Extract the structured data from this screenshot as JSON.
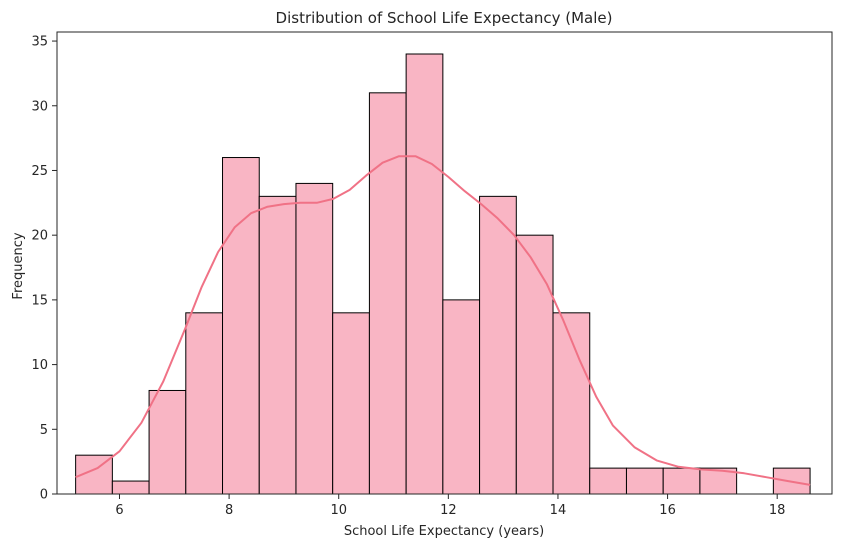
{
  "chart_data": {
    "type": "bar",
    "title": "Distribution of School Life Expectancy (Male)",
    "xlabel": "School Life Expectancy (years)",
    "ylabel": "Frequency",
    "xlim": [
      4.86,
      19.0
    ],
    "ylim": [
      0,
      35.7
    ],
    "xticks": [
      6,
      8,
      10,
      12,
      14,
      16,
      18
    ],
    "yticks": [
      0,
      5,
      10,
      15,
      20,
      25,
      30,
      35
    ],
    "grid": false,
    "bins": [
      {
        "x0": 5.2,
        "x1": 5.87,
        "count": 3
      },
      {
        "x0": 5.87,
        "x1": 6.54,
        "count": 1
      },
      {
        "x0": 6.54,
        "x1": 7.21,
        "count": 8
      },
      {
        "x0": 7.21,
        "x1": 7.88,
        "count": 14
      },
      {
        "x0": 7.88,
        "x1": 8.55,
        "count": 26
      },
      {
        "x0": 8.55,
        "x1": 9.22,
        "count": 23
      },
      {
        "x0": 9.22,
        "x1": 9.89,
        "count": 24
      },
      {
        "x0": 9.89,
        "x1": 10.56,
        "count": 14
      },
      {
        "x0": 10.56,
        "x1": 11.23,
        "count": 31
      },
      {
        "x0": 11.23,
        "x1": 11.9,
        "count": 34
      },
      {
        "x0": 11.9,
        "x1": 12.57,
        "count": 15
      },
      {
        "x0": 12.57,
        "x1": 13.24,
        "count": 23
      },
      {
        "x0": 13.24,
        "x1": 13.91,
        "count": 20
      },
      {
        "x0": 13.91,
        "x1": 14.58,
        "count": 14
      },
      {
        "x0": 14.58,
        "x1": 15.25,
        "count": 2
      },
      {
        "x0": 15.25,
        "x1": 15.92,
        "count": 2
      },
      {
        "x0": 15.92,
        "x1": 16.59,
        "count": 2
      },
      {
        "x0": 16.59,
        "x1": 17.26,
        "count": 2
      },
      {
        "x0": 17.26,
        "x1": 17.93,
        "count": 0
      },
      {
        "x0": 17.93,
        "x1": 18.6,
        "count": 2
      }
    ],
    "kde": {
      "x": [
        5.2,
        5.6,
        6.0,
        6.4,
        6.8,
        7.2,
        7.5,
        7.8,
        8.1,
        8.4,
        8.7,
        9.0,
        9.3,
        9.6,
        9.9,
        10.2,
        10.5,
        10.8,
        11.1,
        11.4,
        11.7,
        12.0,
        12.3,
        12.6,
        12.9,
        13.2,
        13.5,
        13.8,
        14.1,
        14.4,
        14.7,
        15.0,
        15.4,
        15.8,
        16.2,
        16.6,
        17.0,
        17.4,
        17.8,
        18.2,
        18.6
      ],
      "y": [
        1.3,
        2.0,
        3.3,
        5.5,
        8.7,
        12.8,
        16.0,
        18.7,
        20.6,
        21.7,
        22.2,
        22.4,
        22.5,
        22.5,
        22.8,
        23.5,
        24.6,
        25.6,
        26.1,
        26.1,
        25.5,
        24.5,
        23.4,
        22.4,
        21.3,
        20.0,
        18.3,
        16.2,
        13.4,
        10.3,
        7.5,
        5.3,
        3.6,
        2.6,
        2.1,
        1.9,
        1.8,
        1.6,
        1.3,
        1.0,
        0.7
      ]
    },
    "colors": {
      "bar_fill": "#f9b5c4",
      "bar_edge": "#000000",
      "kde_line": "#f07286",
      "axis": "#262626"
    }
  }
}
